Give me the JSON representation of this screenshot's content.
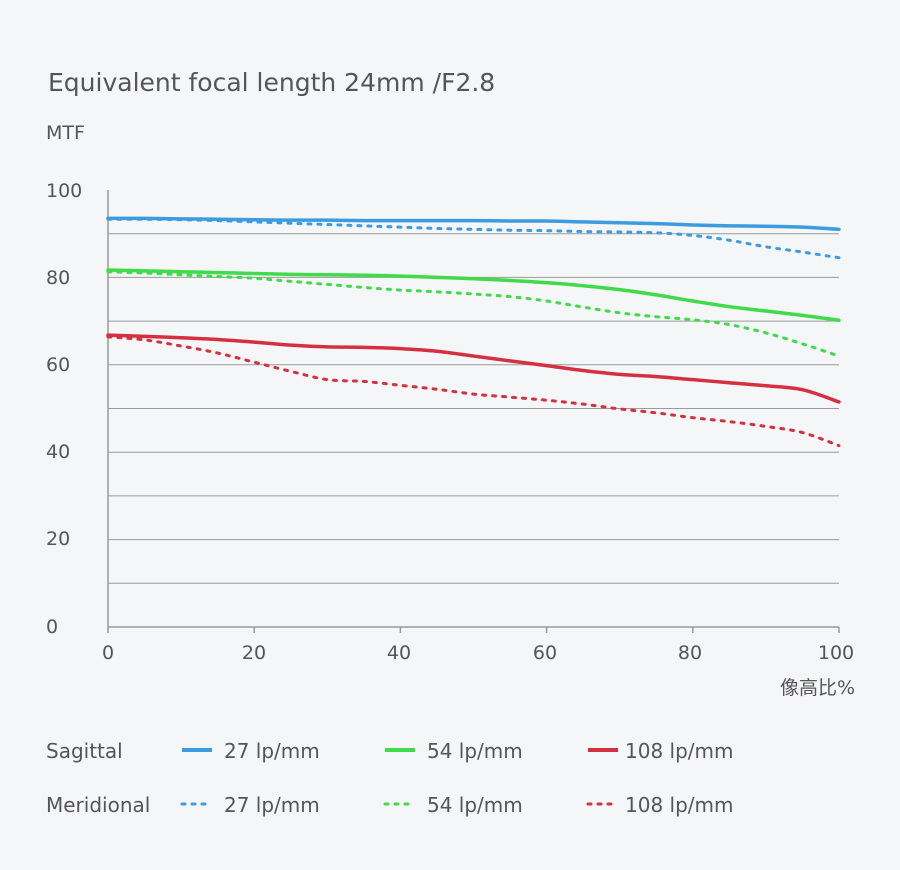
{
  "chart_data": {
    "type": "line",
    "title": "Equivalent focal length 24mm /F2.8",
    "ylabel": "MTF",
    "xlabel": "像高比%",
    "xlim": [
      0,
      100
    ],
    "ylim": [
      0,
      100
    ],
    "x_ticks": [
      "0",
      "20",
      "40",
      "60",
      "80",
      "100"
    ],
    "y_ticks": [
      "0",
      "20",
      "40",
      "60",
      "80",
      "100"
    ],
    "grid": true,
    "legend": {
      "placement": "bottom",
      "row_labels": {
        "sagittal": "Sagittal",
        "meridional": "Meridional"
      },
      "series_labels": [
        "27 lp/mm",
        "54 lp/mm",
        "108 lp/mm"
      ]
    },
    "colors": {
      "blue": "#3d9be0",
      "green": "#3fdb4a",
      "red": "#d43040"
    },
    "x": [
      0,
      5,
      10,
      15,
      20,
      25,
      30,
      35,
      40,
      45,
      50,
      55,
      60,
      65,
      70,
      75,
      80,
      85,
      90,
      95,
      100
    ],
    "series": [
      {
        "name": "27 lp/mm",
        "group": "Sagittal",
        "style": "solid",
        "color": "#3d9be0",
        "values": [
          93.5,
          93.5,
          93.4,
          93.3,
          93.2,
          93.1,
          93.1,
          93.0,
          93.0,
          93.0,
          93.0,
          92.9,
          92.9,
          92.7,
          92.5,
          92.3,
          92.0,
          91.8,
          91.7,
          91.5,
          91.0
        ]
      },
      {
        "name": "27 lp/mm",
        "group": "Meridional",
        "style": "dotted",
        "color": "#3d9be0",
        "values": [
          93.3,
          93.3,
          93.2,
          93.0,
          92.7,
          92.4,
          92.1,
          91.8,
          91.5,
          91.2,
          91.0,
          90.8,
          90.7,
          90.5,
          90.4,
          90.2,
          89.6,
          88.5,
          87.0,
          85.8,
          84.5
        ]
      },
      {
        "name": "54 lp/mm",
        "group": "Sagittal",
        "style": "solid",
        "color": "#3fdb4a",
        "values": [
          81.7,
          81.5,
          81.3,
          81.1,
          80.9,
          80.7,
          80.6,
          80.5,
          80.3,
          80.0,
          79.7,
          79.3,
          78.8,
          78.1,
          77.2,
          76.0,
          74.6,
          73.3,
          72.3,
          71.3,
          70.2
        ]
      },
      {
        "name": "54 lp/mm",
        "group": "Meridional",
        "style": "dotted",
        "color": "#3fdb4a",
        "values": [
          81.3,
          81.0,
          80.6,
          80.2,
          79.8,
          79.1,
          78.4,
          77.7,
          77.1,
          76.7,
          76.2,
          75.6,
          74.6,
          73.2,
          71.9,
          71.0,
          70.3,
          69.2,
          67.3,
          64.8,
          62.0
        ]
      },
      {
        "name": "108 lp/mm",
        "group": "Sagittal",
        "style": "solid",
        "color": "#d43040",
        "values": [
          66.8,
          66.5,
          66.2,
          65.8,
          65.2,
          64.5,
          64.1,
          64.0,
          63.7,
          63.1,
          62.0,
          60.9,
          59.8,
          58.7,
          57.8,
          57.3,
          56.6,
          55.9,
          55.2,
          54.3,
          51.5
        ]
      },
      {
        "name": "108 lp/mm",
        "group": "Meridional",
        "style": "dotted",
        "color": "#d43040",
        "values": [
          66.4,
          65.7,
          64.3,
          62.7,
          60.6,
          58.5,
          56.6,
          56.2,
          55.3,
          54.4,
          53.3,
          52.6,
          51.9,
          51.0,
          49.9,
          49.0,
          47.9,
          47.0,
          45.9,
          44.5,
          41.5
        ]
      }
    ]
  }
}
